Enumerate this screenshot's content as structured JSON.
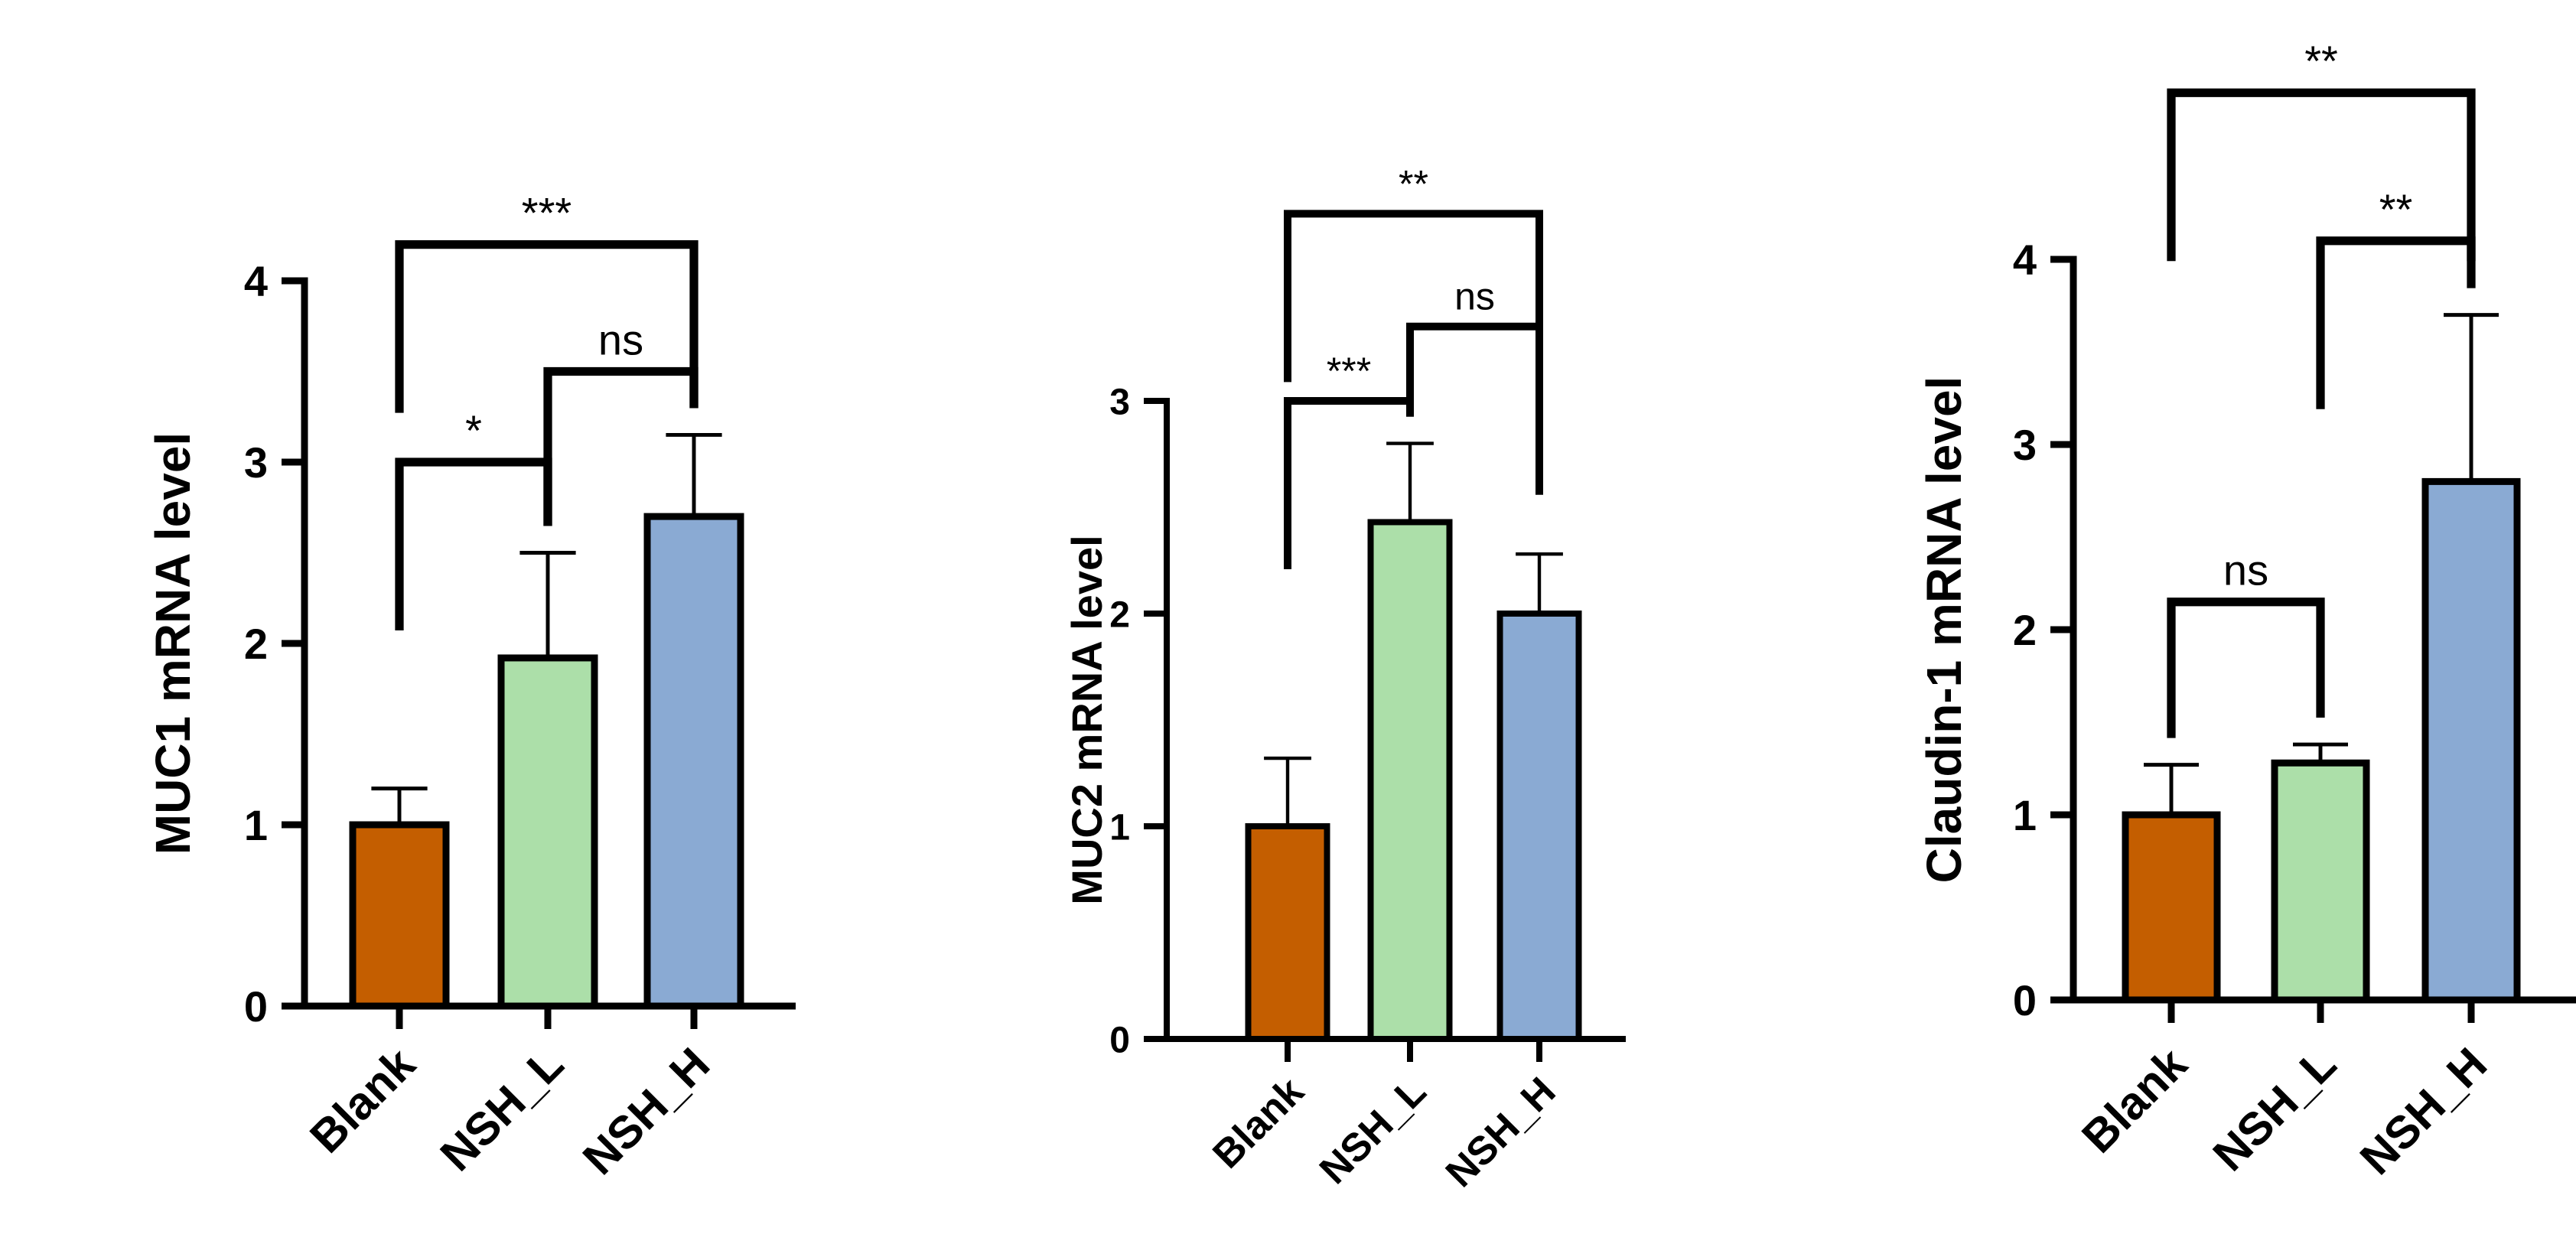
{
  "colors": {
    "axis": "#000000",
    "Blank": "#c45e00",
    "NSH_L": "#acdfa9",
    "NSH_H": "#8aaad3"
  },
  "chart_data": [
    {
      "type": "bar",
      "categories": [
        "Blank",
        "NSH_L",
        "NSH_H"
      ],
      "values": [
        1.0,
        1.92,
        2.7
      ],
      "errors": [
        0.2,
        0.58,
        0.45
      ],
      "ylabel": "MUC1 mRNA level",
      "ylim": [
        0,
        4
      ],
      "yticks": [
        0,
        1,
        2,
        3,
        4
      ],
      "ytick_labels": [
        "0",
        "1",
        "2",
        "3",
        "4"
      ],
      "comparisons": [
        {
          "from": 0,
          "to": 1,
          "label": "*",
          "at": 3.0
        },
        {
          "from": 1,
          "to": 2,
          "label": "ns",
          "at": 3.5
        },
        {
          "from": 0,
          "to": 2,
          "label": "***",
          "at": 4.2
        }
      ]
    },
    {
      "type": "bar",
      "categories": [
        "Blank",
        "NSH_L",
        "NSH_H"
      ],
      "values": [
        1.0,
        2.43,
        2.0
      ],
      "errors": [
        0.32,
        0.37,
        0.28
      ],
      "ylabel": "MUC2 mRNA level",
      "ylim": [
        0,
        3
      ],
      "yticks": [
        0,
        1,
        2,
        3
      ],
      "ytick_labels": [
        "0",
        "1",
        "2",
        "3"
      ],
      "comparisons": [
        {
          "from": 0,
          "to": 1,
          "label": "***",
          "at": 3.0
        },
        {
          "from": 1,
          "to": 2,
          "label": "ns",
          "at": 3.35
        },
        {
          "from": 0,
          "to": 2,
          "label": "**",
          "at": 3.88
        }
      ]
    },
    {
      "type": "bar",
      "categories": [
        "Blank",
        "NSH_L",
        "NSH_H"
      ],
      "values": [
        1.0,
        1.28,
        2.8
      ],
      "errors": [
        0.27,
        0.1,
        0.9
      ],
      "ylabel": "Claudin-1 mRNA level",
      "ylim": [
        0,
        4
      ],
      "yticks": [
        0,
        1,
        2,
        3,
        4
      ],
      "ytick_labels": [
        "0",
        "1",
        "2",
        "3",
        "4"
      ],
      "comparisons": [
        {
          "from": 0,
          "to": 1,
          "label": "ns",
          "at": 2.15
        },
        {
          "from": 1,
          "to": 2,
          "label": "**",
          "at": 4.1
        },
        {
          "from": 0,
          "to": 2,
          "label": "**",
          "at": 4.9
        }
      ]
    }
  ]
}
